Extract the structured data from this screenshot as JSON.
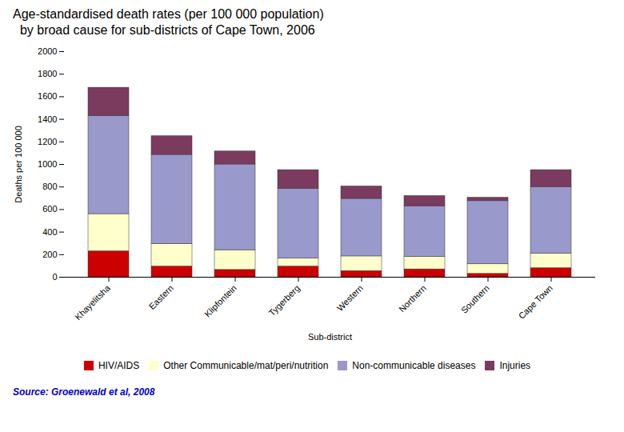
{
  "chart_data": {
    "type": "bar",
    "stacked": true,
    "title": "Age-standardised death rates (per 100 000 population)",
    "subtitle": "  by broad cause for sub-districts of Cape Town, 2006",
    "xlabel": "Sub-district",
    "ylabel": "Deaths per 100 000",
    "caption": "Source: Groenewald et al, 2008",
    "categories": [
      "Khayelitsha",
      "Eastern",
      "Klipfontein",
      "Tygerberg",
      "Western",
      "Northern",
      "Southern",
      "Cape Town"
    ],
    "series": [
      {
        "name": "HIV/AIDS",
        "color": "#cc0000",
        "values": [
          230,
          95,
          65,
          95,
          55,
          70,
          30,
          80
        ]
      },
      {
        "name": "Other Communicable/mat/peri/nutrition",
        "color": "#ffffcc",
        "values": [
          330,
          200,
          175,
          70,
          130,
          110,
          85,
          130
        ]
      },
      {
        "name": "Non-communicable diseases",
        "color": "#9999cc",
        "values": [
          870,
          790,
          760,
          620,
          510,
          450,
          560,
          590
        ]
      },
      {
        "name": "Injuries",
        "color": "#7b3b5e",
        "values": [
          250,
          165,
          115,
          165,
          110,
          90,
          30,
          150
        ]
      }
    ],
    "ylim": [
      0,
      2000
    ],
    "yticks": [
      0,
      200,
      400,
      600,
      800,
      1000,
      1200,
      1400,
      1600,
      1800,
      2000
    ],
    "grid": false,
    "legend": "bottom"
  }
}
